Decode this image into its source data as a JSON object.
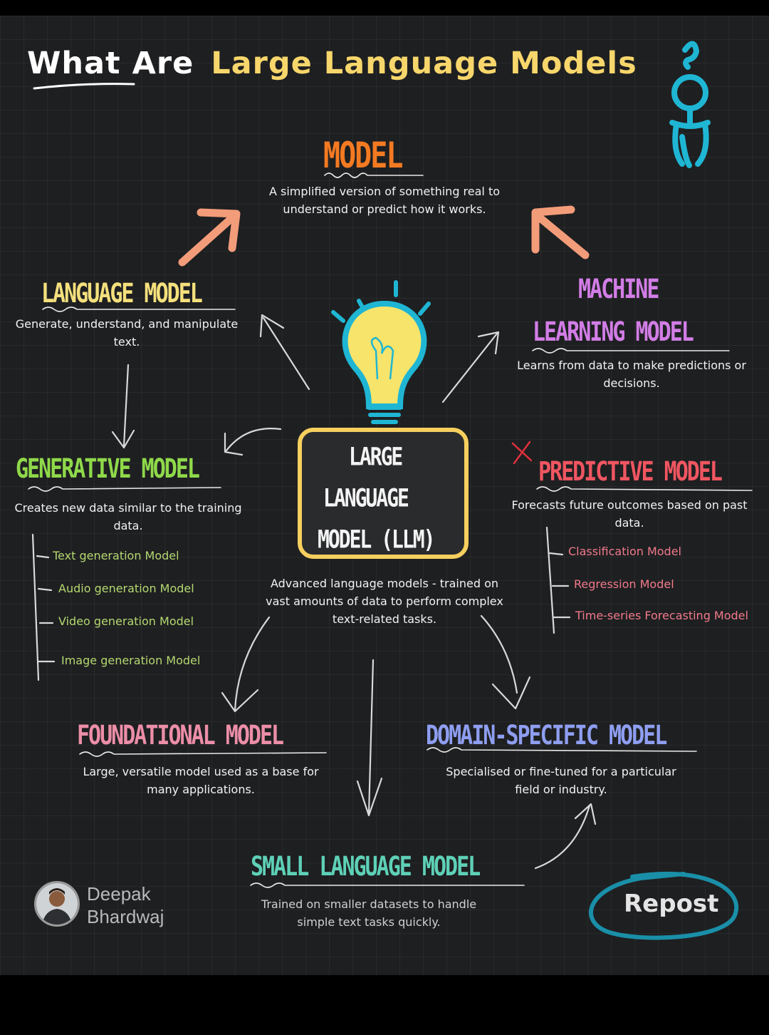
{
  "title": {
    "part1": "What Are",
    "part2": "Large Language Models"
  },
  "colors": {
    "background": "#1e1f21",
    "title_yellow": "#f7d66b",
    "model_orange": "#f47a22",
    "language_yellow": "#f4e07c",
    "ml_purple": "#d27de6",
    "generative_green": "#8fd94a",
    "predictive_red": "#f05661",
    "foundational_pink": "#ec8ea8",
    "domain_blue": "#8e9ef0",
    "small_teal": "#5ed1b7",
    "llm_box_border": "#f6cf5e",
    "bulb_yellow": "#f7e46a",
    "bulb_cyan": "#1fb6d4",
    "arrow_salmon": "#f39c79"
  },
  "model": {
    "heading": "MODEL",
    "desc_line1": "A simplified version of something real to",
    "desc_line2": "understand or predict how it works."
  },
  "language_model": {
    "heading": "LANGUAGE MODEL",
    "desc_line1": "Generate, understand, and manipulate",
    "desc_line2": "text."
  },
  "machine_learning_model": {
    "heading_line1": "MACHINE",
    "heading_line2": "LEARNING MODEL",
    "desc_line1": "Learns from data to make predictions or",
    "desc_line2": "decisions."
  },
  "generative_model": {
    "heading": "GENERATIVE MODEL",
    "desc_line1": "Creates new data similar to the training",
    "desc_line2": "data.",
    "items": [
      "Text generation Model",
      "Audio generation Model",
      "Video generation Model",
      "Image generation Model"
    ]
  },
  "llm": {
    "line1": "LARGE",
    "line2": "LANGUAGE",
    "line3": "MODEL (LLM)",
    "desc_line1": "Advanced language models - trained on",
    "desc_line2": "vast amounts of data to perform complex",
    "desc_line3": "text-related tasks."
  },
  "predictive_model": {
    "heading": "PREDICTIVE MODEL",
    "desc_line1": "Forecasts future outcomes based on past",
    "desc_line2": "data.",
    "items": [
      "Classification Model",
      "Regression Model",
      "Time-series Forecasting Model"
    ]
  },
  "foundational_model": {
    "heading": "FOUNDATIONAL MODEL",
    "desc_line1": "Large, versatile model used as a base for",
    "desc_line2": "many applications."
  },
  "domain_specific_model": {
    "heading": "DOMAIN-SPECIFIC MODEL",
    "desc_line1": "Specialised or fine-tuned for a particular",
    "desc_line2": "field or industry."
  },
  "small_language_model": {
    "heading": "SMALL LANGUAGE MODEL",
    "desc_line1": "Trained on smaller datasets to handle",
    "desc_line2": "simple text tasks quickly."
  },
  "author": {
    "first_name": "Deepak",
    "last_name": "Bhardwaj"
  },
  "repost_label": "Repost"
}
